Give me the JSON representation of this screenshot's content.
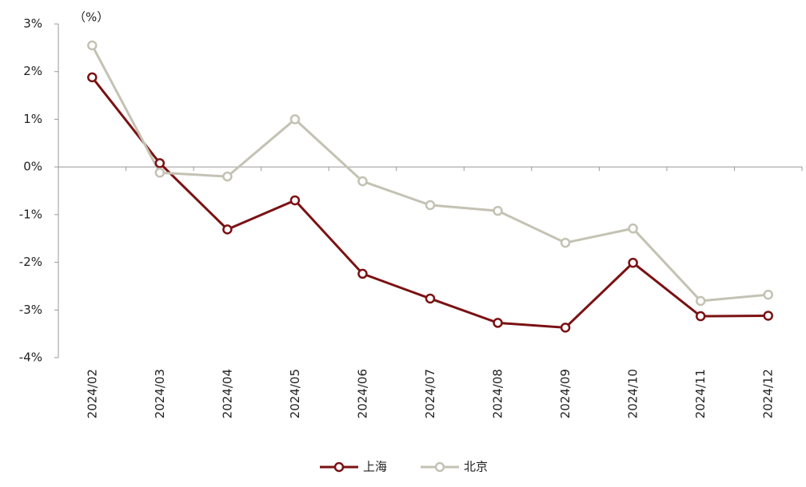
{
  "chart_data": {
    "type": "line",
    "y_label": "（%）",
    "categories": [
      "2024/02",
      "2024/03",
      "2024/04",
      "2024/05",
      "2024/06",
      "2024/07",
      "2024/08",
      "2024/09",
      "2024/10",
      "2024/11",
      "2024/12"
    ],
    "series": [
      {
        "name": "上海",
        "color": "#7b1113",
        "values": [
          1.88,
          0.08,
          -1.31,
          -0.7,
          -2.24,
          -2.76,
          -3.27,
          -3.37,
          -2.01,
          -3.13,
          -3.12
        ]
      },
      {
        "name": "北京",
        "color": "#c4c2b3",
        "values": [
          2.55,
          -0.12,
          -0.2,
          1.0,
          -0.3,
          -0.8,
          -0.92,
          -1.59,
          -1.29,
          -2.81,
          -2.68
        ]
      }
    ],
    "ylim": [
      -4,
      3
    ],
    "yticks": [
      {
        "value": 3,
        "label": "3%"
      },
      {
        "value": 2,
        "label": "2%"
      },
      {
        "value": 1,
        "label": "1%"
      },
      {
        "value": 0,
        "label": "0%"
      },
      {
        "value": -1,
        "label": "-1%"
      },
      {
        "value": -2,
        "label": "-2%"
      },
      {
        "value": -3,
        "label": "-3%"
      },
      {
        "value": -4,
        "label": "-4%"
      }
    ],
    "grid": false,
    "legend": "bottom"
  }
}
